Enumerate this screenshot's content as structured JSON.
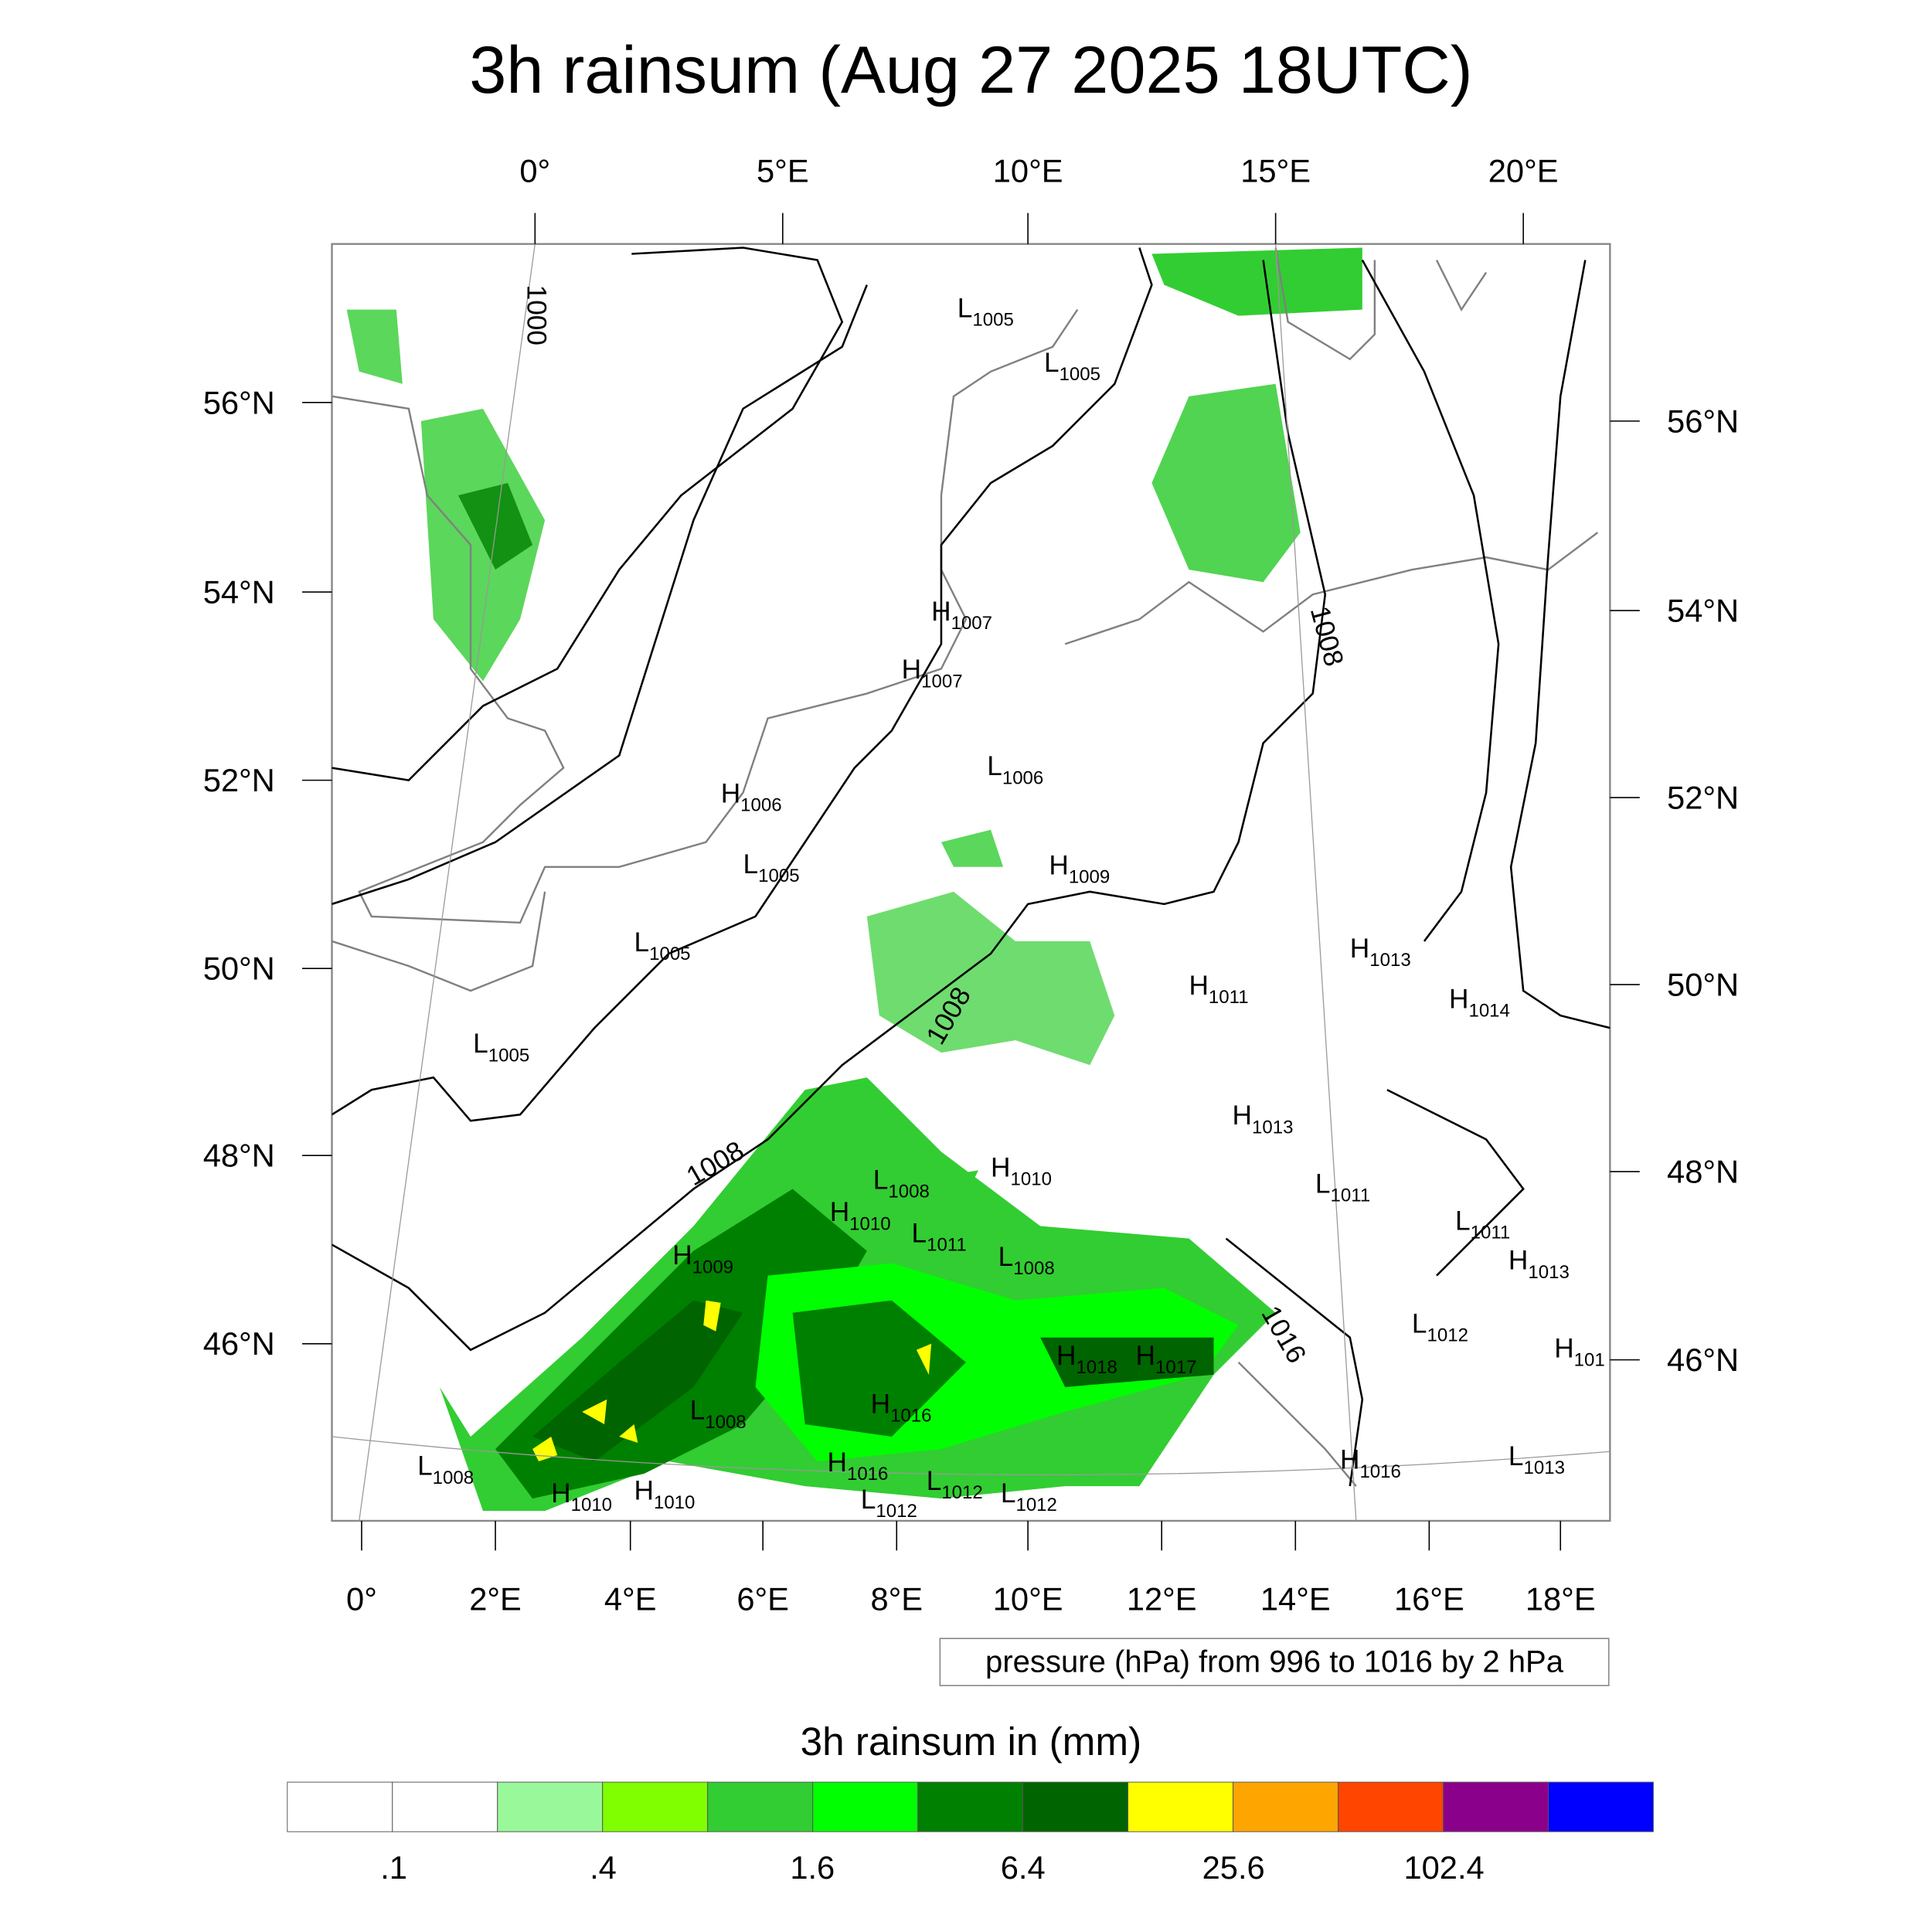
{
  "title": "3h rainsum (Aug 27 2025 18UTC)",
  "top_axis": [
    "0°",
    "5°E",
    "10°E",
    "15°E",
    "20°E"
  ],
  "bottom_axis": [
    "0°",
    "2°E",
    "4°E",
    "6°E",
    "8°E",
    "10°E",
    "12°E",
    "14°E",
    "16°E",
    "18°E"
  ],
  "left_axis": [
    "56°N",
    "54°N",
    "52°N",
    "50°N",
    "48°N",
    "46°N"
  ],
  "right_axis": [
    "56°N",
    "54°N",
    "52°N",
    "50°N",
    "48°N",
    "46°N"
  ],
  "contour_labels": [
    "1000",
    "1008",
    "1008",
    "1008",
    "1016"
  ],
  "pressure_centers": [
    {
      "t": "L",
      "v": "1005"
    },
    {
      "t": "L",
      "v": "1005"
    },
    {
      "t": "H",
      "v": "1007"
    },
    {
      "t": "H",
      "v": "1007"
    },
    {
      "t": "L",
      "v": "1006"
    },
    {
      "t": "H",
      "v": "1006"
    },
    {
      "t": "L",
      "v": "1005"
    },
    {
      "t": "H",
      "v": "1009"
    },
    {
      "t": "L",
      "v": "1005"
    },
    {
      "t": "H",
      "v": "1013"
    },
    {
      "t": "H",
      "v": "1011"
    },
    {
      "t": "H",
      "v": "1014"
    },
    {
      "t": "L",
      "v": "1005"
    },
    {
      "t": "H",
      "v": "1013"
    },
    {
      "t": "L",
      "v": "1008"
    },
    {
      "t": "H",
      "v": "1010"
    },
    {
      "t": "H",
      "v": "1010"
    },
    {
      "t": "L",
      "v": "1011"
    },
    {
      "t": "L",
      "v": "1011"
    },
    {
      "t": "L",
      "v": "1011"
    },
    {
      "t": "H",
      "v": "1013"
    },
    {
      "t": "L",
      "v": "1008"
    },
    {
      "t": "H",
      "v": "1009"
    },
    {
      "t": "L",
      "v": "1012"
    },
    {
      "t": "H",
      "v": "101"
    },
    {
      "t": "H",
      "v": "1018"
    },
    {
      "t": "H",
      "v": "1017"
    },
    {
      "t": "L",
      "v": "1008"
    },
    {
      "t": "H",
      "v": "1016"
    },
    {
      "t": "L",
      "v": "1008"
    },
    {
      "t": "H",
      "v": "1016"
    },
    {
      "t": "L",
      "v": "1012"
    },
    {
      "t": "L",
      "v": "1012"
    },
    {
      "t": "L",
      "v": "1012"
    },
    {
      "t": "H",
      "v": "1010"
    },
    {
      "t": "H",
      "v": "1010"
    },
    {
      "t": "H",
      "v": "1016"
    },
    {
      "t": "L",
      "v": "1013"
    }
  ],
  "contour_info": "pressure (hPa) from 996 to 1016 by 2 hPa",
  "colorbar": {
    "title": "3h rainsum in (mm)",
    "colors": [
      "#ffffff",
      "#ffffff",
      "#99f899",
      "#7fff00",
      "#32cd32",
      "#00ff00",
      "#008000",
      "#006400",
      "#ffff00",
      "#ffa500",
      "#ff4500",
      "#8b008b",
      "#0000ff"
    ],
    "labels": [
      ".1",
      ".4",
      "1.6",
      "6.4",
      "25.6",
      "102.4"
    ]
  }
}
